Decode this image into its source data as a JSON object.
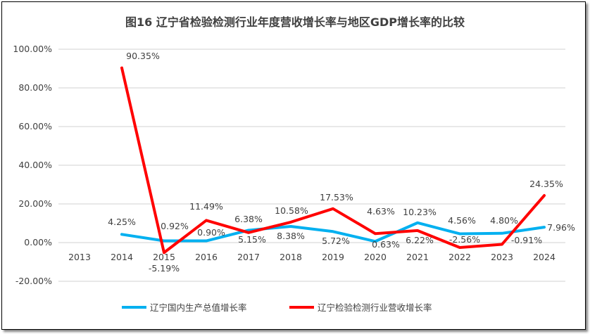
{
  "chart_data": {
    "type": "line",
    "title": "图16  辽宁省检验检测行业年度营收增长率与地区GDP增长率的比较",
    "categories": [
      "2013",
      "2014",
      "2015",
      "2016",
      "2017",
      "2018",
      "2019",
      "2020",
      "2021",
      "2022",
      "2023",
      "2024"
    ],
    "ylim": [
      -20,
      100
    ],
    "yticks": [
      "-20.00%",
      "0.00%",
      "20.00%",
      "40.00%",
      "60.00%",
      "80.00%",
      "100.00%"
    ],
    "grid": true,
    "legend_position": "bottom",
    "series": [
      {
        "name": "辽宁国内生产总值增长率",
        "color": "#00B0F0",
        "values": [
          null,
          4.25,
          0.92,
          0.9,
          6.38,
          8.38,
          5.72,
          0.63,
          10.23,
          4.56,
          4.8,
          7.96
        ],
        "labels": [
          "",
          "4.25%",
          "0.92%",
          "0.90%",
          "6.38%",
          "8.38%",
          "5.72%",
          "0.63%",
          "10.23%",
          "4.56%",
          "4.80%",
          "7.96%"
        ]
      },
      {
        "name": "辽宁检验检测行业营收增长率",
        "color": "#FF0000",
        "values": [
          null,
          90.35,
          -5.19,
          11.49,
          5.15,
          10.58,
          17.53,
          4.63,
          6.22,
          -2.56,
          -0.91,
          24.35
        ],
        "labels": [
          "",
          "90.35%",
          "-5.19%",
          "11.49%",
          "5.15%",
          "10.58%",
          "17.53%",
          "4.63%",
          "6.22%",
          "-2.56%",
          "-0.91%",
          "24.35%"
        ]
      }
    ]
  }
}
